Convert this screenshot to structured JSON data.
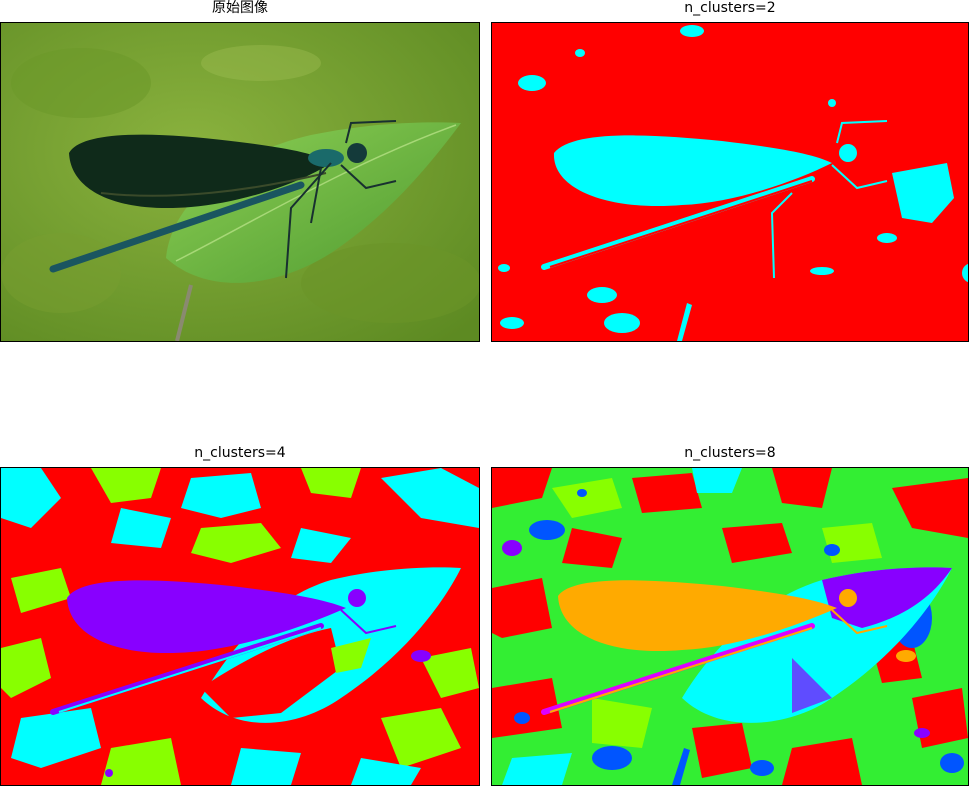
{
  "panels": [
    {
      "title": "原始图像"
    },
    {
      "title": "n_clusters=2"
    },
    {
      "title": "n_clusters=4"
    },
    {
      "title": "n_clusters=8"
    }
  ],
  "colors": {
    "moss_dark": "#5e8a22",
    "moss_mid": "#7ea435",
    "moss_light": "#9bbf4a",
    "leaf": "#7cc24a",
    "leaf_dark": "#4e9a30",
    "wing": "#0f2a1a",
    "body": "#1a6a6a",
    "red": "#ff0000",
    "cyan": "#00ffff",
    "violet": "#8800ff",
    "lime": "#88ff00",
    "green": "#33ee33",
    "orange": "#ffaa00",
    "blue": "#0055ff",
    "magenta": "#dd00ff"
  }
}
